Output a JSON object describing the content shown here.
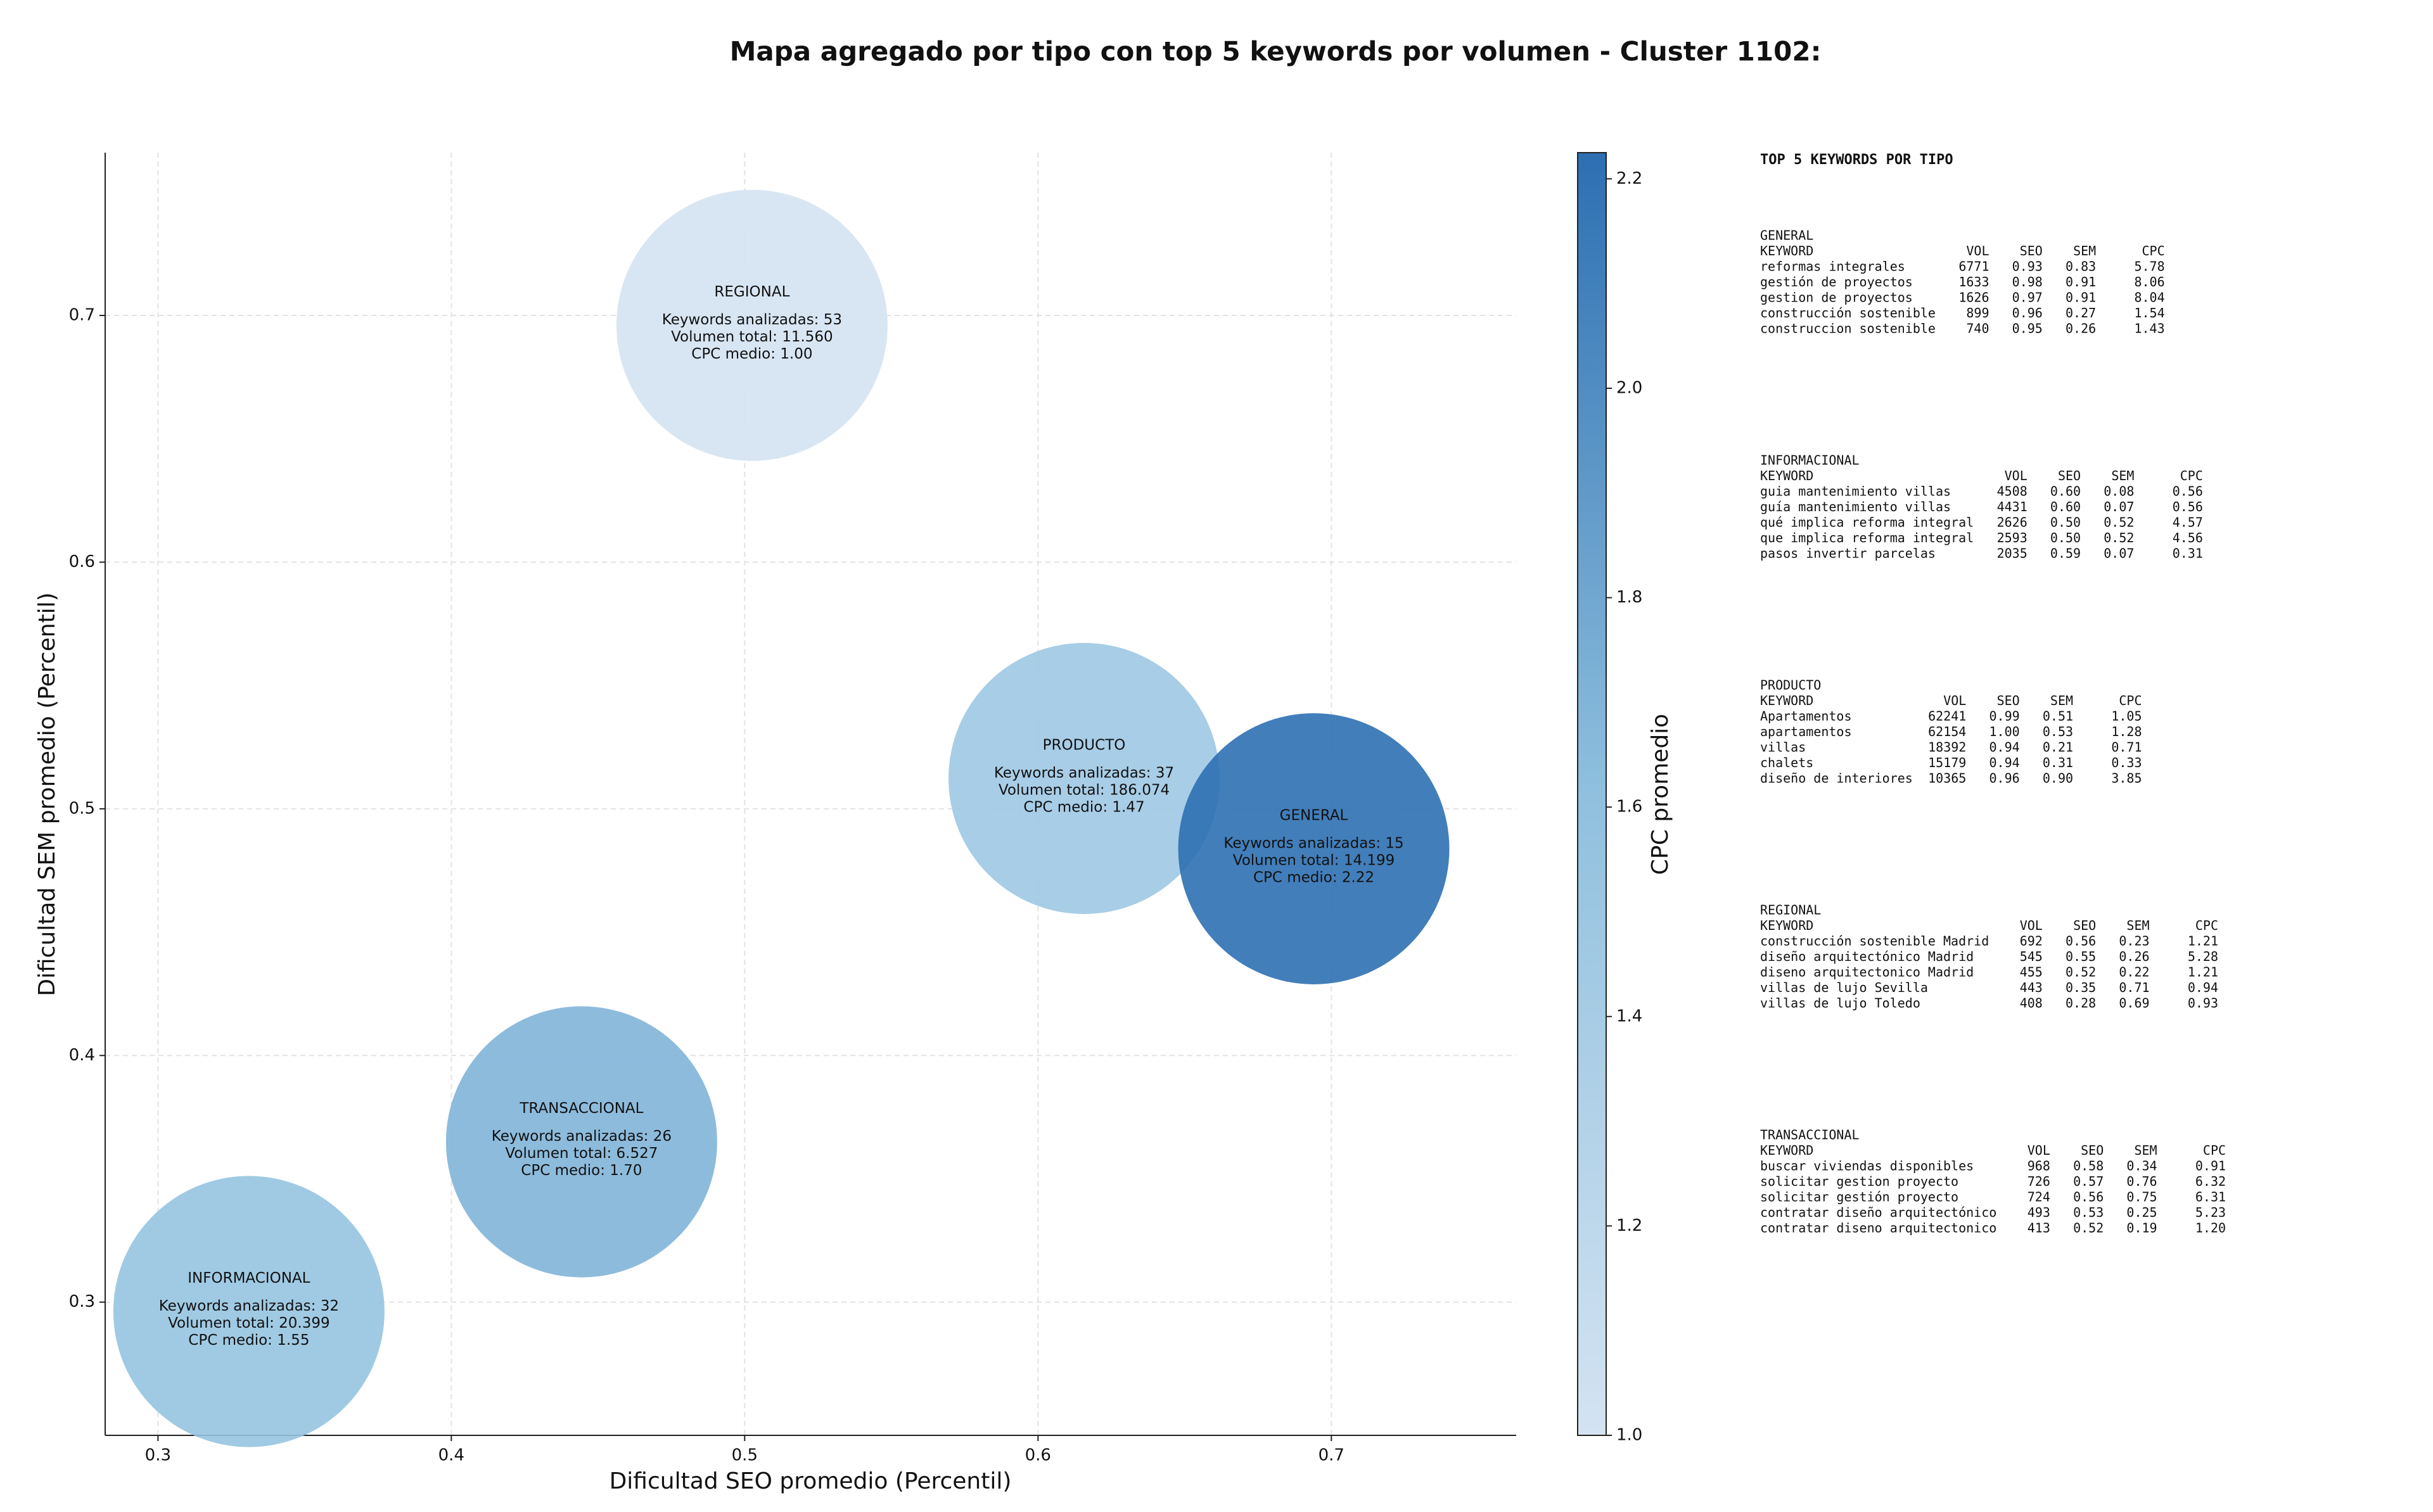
{
  "chart_data": {
    "type": "scatter",
    "title": "Mapa agregado por tipo con top 5 keywords por volumen - Cluster 1102:",
    "x_label": "Dificultad SEO promedio (Percentil)",
    "y_label": "Dificultad SEM promedio (Percentil)",
    "colorbar_label": "CPC promedio",
    "names": [
      "REGIONAL",
      "PRODUCTO",
      "GENERAL",
      "TRANSACCIONAL",
      "INFORMACIONAL"
    ],
    "x": [
      0.5025,
      0.6157,
      0.694,
      0.4444,
      0.331
    ],
    "y": [
      0.696,
      0.5123,
      0.4838,
      0.365,
      0.2962
    ],
    "color_values": [
      1.0,
      1.47,
      2.22,
      1.7,
      1.55
    ],
    "annotations": [
      [
        "Keywords analizadas: 53",
        "Volumen total: 11.560",
        "CPC medio: 1.00"
      ],
      [
        "Keywords analizadas: 37",
        "Volumen total: 186.074",
        "CPC medio: 1.47"
      ],
      [
        "Keywords analizadas: 15",
        "Volumen total: 14.199",
        "CPC medio: 2.22"
      ],
      [
        "Keywords analizadas: 26",
        "Volumen total: 6.527",
        "CPC medio: 1.70"
      ],
      [
        "Keywords analizadas: 32",
        "Volumen total: 20.399",
        "CPC medio: 1.55"
      ]
    ],
    "xlim": [
      0.282,
      0.763
    ],
    "ylim": [
      0.246,
      0.766
    ],
    "xticks": [
      0.3,
      0.4,
      0.5,
      0.6,
      0.7
    ],
    "yticks": [
      0.3,
      0.4,
      0.5,
      0.6,
      0.7
    ],
    "clim": [
      1.0,
      2.225
    ],
    "cticks": [
      {
        "value": 1.0,
        "label": "1.0"
      },
      1.2,
      1.4,
      1.6,
      1.8,
      {
        "value": 2.0,
        "label": "2.0"
      },
      2.2
    ],
    "colormap": [
      "#d4e3f2",
      "#8fc0de",
      "#2c6fb2"
    ],
    "grid": true
  },
  "panel": {
    "title": "TOP 5 KEYWORDS POR TIPO",
    "columns": [
      "KEYWORD",
      "VOL",
      "SEO",
      "SEM",
      "CPC"
    ],
    "groups": [
      {
        "name": "GENERAL",
        "rows": [
          [
            "reformas integrales",
            "6771",
            "0.93",
            "0.83",
            "5.78"
          ],
          [
            "gestión de proyectos",
            "1633",
            "0.98",
            "0.91",
            "8.06"
          ],
          [
            "gestion de proyectos",
            "1626",
            "0.97",
            "0.91",
            "8.04"
          ],
          [
            "construcción sostenible",
            "899",
            "0.96",
            "0.27",
            "1.54"
          ],
          [
            "construccion sostenible",
            "740",
            "0.95",
            "0.26",
            "1.43"
          ]
        ]
      },
      {
        "name": "INFORMACIONAL",
        "rows": [
          [
            "guia mantenimiento villas",
            "4508",
            "0.60",
            "0.08",
            "0.56"
          ],
          [
            "guía mantenimiento villas",
            "4431",
            "0.60",
            "0.07",
            "0.56"
          ],
          [
            "qué implica reforma integral",
            "2626",
            "0.50",
            "0.52",
            "4.57"
          ],
          [
            "que implica reforma integral",
            "2593",
            "0.50",
            "0.52",
            "4.56"
          ],
          [
            "pasos invertir parcelas",
            "2035",
            "0.59",
            "0.07",
            "0.31"
          ]
        ]
      },
      {
        "name": "PRODUCTO",
        "rows": [
          [
            "Apartamentos",
            "62241",
            "0.99",
            "0.51",
            "1.05"
          ],
          [
            "apartamentos",
            "62154",
            "1.00",
            "0.53",
            "1.28"
          ],
          [
            "villas",
            "18392",
            "0.94",
            "0.21",
            "0.71"
          ],
          [
            "chalets",
            "15179",
            "0.94",
            "0.31",
            "0.33"
          ],
          [
            "diseño de interiores",
            "10365",
            "0.96",
            "0.90",
            "3.85"
          ]
        ]
      },
      {
        "name": "REGIONAL",
        "rows": [
          [
            "construcción sostenible Madrid",
            "692",
            "0.56",
            "0.23",
            "1.21"
          ],
          [
            "diseño arquitectónico Madrid",
            "545",
            "0.55",
            "0.26",
            "5.28"
          ],
          [
            "diseno arquitectonico Madrid",
            "455",
            "0.52",
            "0.22",
            "1.21"
          ],
          [
            "villas de lujo Sevilla",
            "443",
            "0.35",
            "0.71",
            "0.94"
          ],
          [
            "villas de lujo Toledo",
            "408",
            "0.28",
            "0.69",
            "0.93"
          ]
        ]
      },
      {
        "name": "TRANSACCIONAL",
        "rows": [
          [
            "buscar viviendas disponibles",
            "968",
            "0.58",
            "0.34",
            "0.91"
          ],
          [
            "solicitar gestion proyecto",
            "726",
            "0.57",
            "0.76",
            "6.32"
          ],
          [
            "solicitar gestión proyecto",
            "724",
            "0.56",
            "0.75",
            "6.31"
          ],
          [
            "contratar diseño arquitectónico",
            "493",
            "0.53",
            "0.25",
            "5.23"
          ],
          [
            "contratar diseno arquitectonico",
            "413",
            "0.52",
            "0.19",
            "1.20"
          ]
        ]
      }
    ]
  }
}
